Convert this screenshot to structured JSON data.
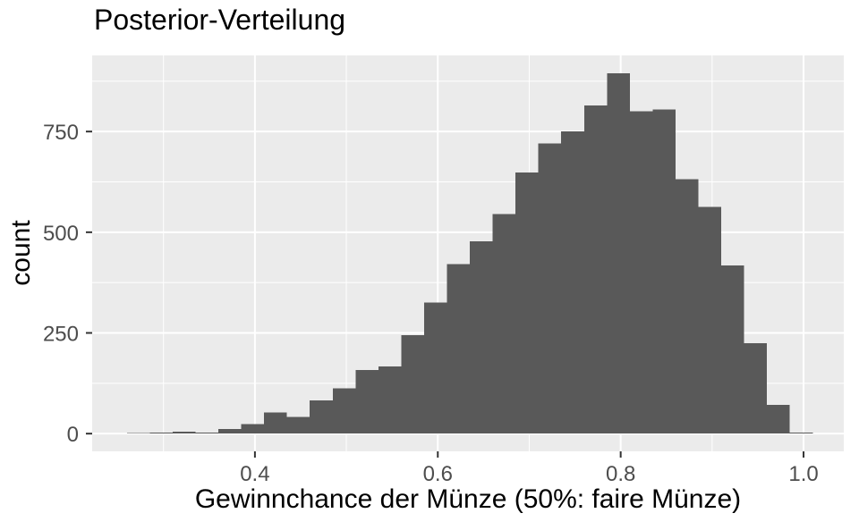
{
  "figure": {
    "title": "Posterior-Verteilung",
    "x_axis_title": "Gewinnchance der Münze (50%: faire Münze)",
    "y_axis_title": "count"
  },
  "chart_data": {
    "type": "bar",
    "subtype": "histogram",
    "title": "Posterior-Verteilung",
    "xlabel": "Gewinnchance der Münze (50%: faire Münze)",
    "ylabel": "count",
    "bin_start": 0.26,
    "bin_width": 0.025,
    "counts": [
      2,
      3,
      5,
      3,
      12,
      24,
      52,
      41,
      82,
      112,
      158,
      167,
      245,
      325,
      421,
      478,
      545,
      648,
      720,
      750,
      815,
      895,
      800,
      805,
      632,
      563,
      417,
      225,
      71,
      3
    ],
    "x_tick_values": [
      0.4,
      0.6,
      0.8,
      1.0
    ],
    "x_tick_labels": [
      "0.4",
      "0.6",
      "0.8",
      "1.0"
    ],
    "x_minor_values": [
      0.3,
      0.5,
      0.7,
      0.9
    ],
    "y_tick_values": [
      0,
      250,
      500,
      750
    ],
    "y_tick_labels": [
      "0",
      "250",
      "500",
      "750"
    ],
    "y_minor_values": [
      125,
      375,
      625,
      875
    ],
    "xlim": [
      0.222,
      1.044
    ],
    "ylim": [
      -44,
      939
    ],
    "grid": true,
    "legend": "none",
    "colors": {
      "bar": "#595959",
      "panel": "#EBEBEB",
      "grid": "#FFFFFF",
      "tick_label": "#4D4D4D",
      "tick_mark": "#333333",
      "title": "#000000",
      "background": "#FFFFFF"
    }
  }
}
